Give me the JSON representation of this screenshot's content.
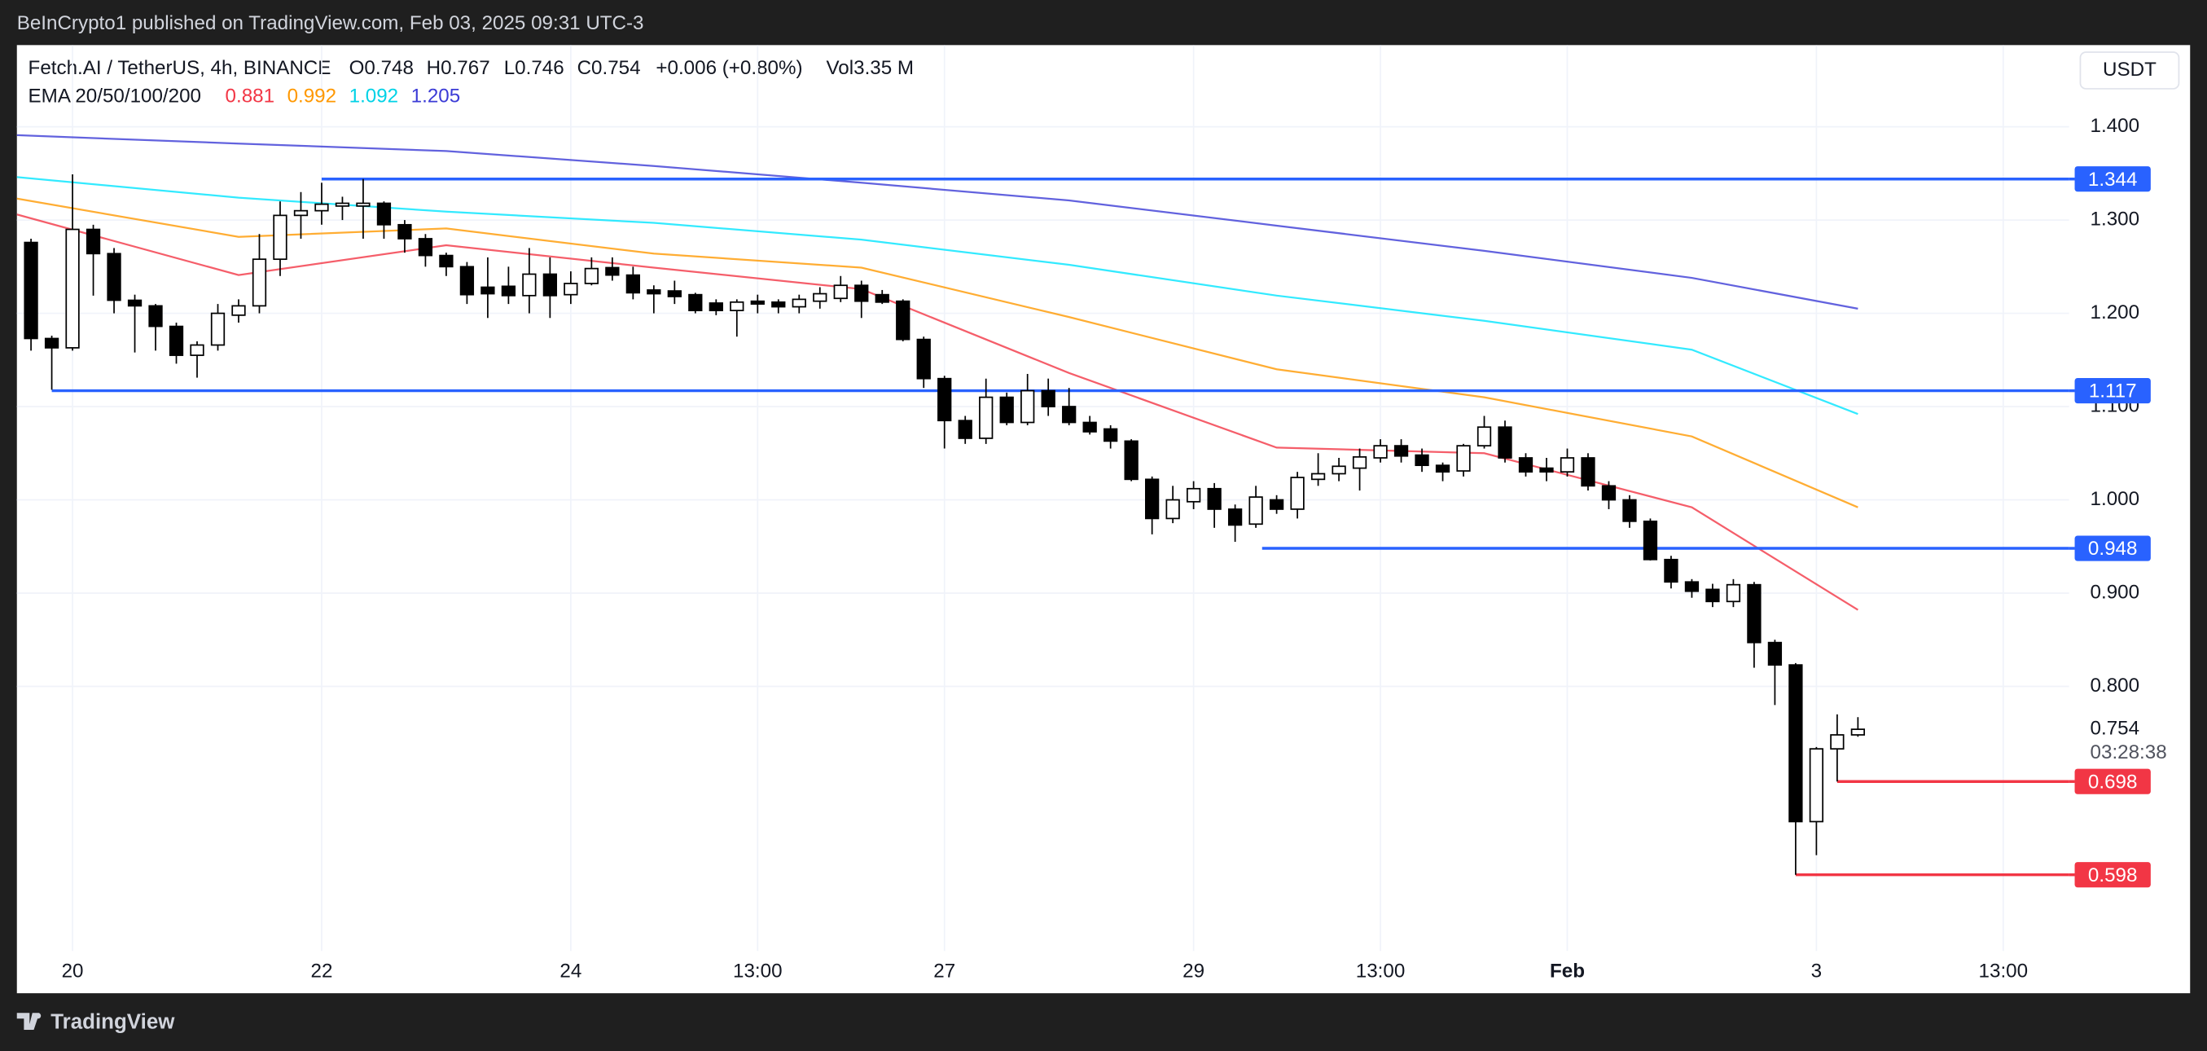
{
  "header": {
    "published": "BeInCrypto1 published on TradingView.com, Feb 03, 2025 09:31 UTC-3",
    "symbol": "Fetch.AI / TetherUS, 4h, BINANCE",
    "open": "O0.748",
    "high": "H0.767",
    "low": "L0.746",
    "close": "C0.754",
    "change": "+0.006 (+0.80%)",
    "volume": "Vol3.35 M",
    "currency": "USDT"
  },
  "footer": {
    "brand": "TradingView"
  },
  "chart_data": {
    "type": "candlestick",
    "up_color": "#ffffff",
    "down_color": "#000000",
    "wick_color": "#000000",
    "candles": {
      "open": [
        1.276,
        1.173,
        1.163,
        1.29,
        1.264,
        1.214,
        1.208,
        1.186,
        1.155,
        1.166,
        1.198,
        1.208,
        1.258,
        1.305,
        1.31,
        1.315,
        1.315,
        1.318,
        1.295,
        1.28,
        1.262,
        1.25,
        1.228,
        1.229,
        1.219,
        1.242,
        1.22,
        1.232,
        1.249,
        1.241,
        1.225,
        1.224,
        1.22,
        1.211,
        1.203,
        1.213,
        1.212,
        1.207,
        1.213,
        1.216,
        1.23,
        1.22,
        1.213,
        1.172,
        1.13,
        1.085,
        1.066,
        1.11,
        1.083,
        1.117,
        1.1,
        1.083,
        1.076,
        1.063,
        1.022,
        0.98,
        0.998,
        1.012,
        0.99,
        0.974,
        1.0,
        0.99,
        1.022,
        1.028,
        1.034,
        1.045,
        1.058,
        1.048,
        1.037,
        1.031,
        1.058,
        1.078,
        1.045,
        1.034,
        1.03,
        1.045,
        1.015,
        1.0,
        0.977,
        0.936,
        0.912,
        0.904,
        0.891,
        0.909,
        0.847,
        0.823,
        0.655,
        0.733,
        0.748
      ],
      "high": [
        1.28,
        1.176,
        1.349,
        1.295,
        1.27,
        1.22,
        1.21,
        1.19,
        1.17,
        1.21,
        1.215,
        1.285,
        1.32,
        1.33,
        1.34,
        1.325,
        1.344,
        1.32,
        1.3,
        1.285,
        1.265,
        1.255,
        1.26,
        1.25,
        1.27,
        1.26,
        1.245,
        1.26,
        1.26,
        1.25,
        1.23,
        1.235,
        1.222,
        1.215,
        1.215,
        1.22,
        1.215,
        1.22,
        1.228,
        1.24,
        1.235,
        1.225,
        1.215,
        1.175,
        1.133,
        1.09,
        1.13,
        1.115,
        1.135,
        1.13,
        1.12,
        1.09,
        1.08,
        1.065,
        1.025,
        1.015,
        1.02,
        1.018,
        0.995,
        1.015,
        1.005,
        1.03,
        1.05,
        1.045,
        1.055,
        1.065,
        1.065,
        1.055,
        1.04,
        1.06,
        1.09,
        1.085,
        1.05,
        1.045,
        1.055,
        1.05,
        1.02,
        1.005,
        0.98,
        0.94,
        0.915,
        0.91,
        0.915,
        0.912,
        0.85,
        0.825,
        0.735,
        0.77,
        0.767
      ],
      "low": [
        1.16,
        1.118,
        1.16,
        1.219,
        1.2,
        1.158,
        1.16,
        1.146,
        1.131,
        1.16,
        1.19,
        1.2,
        1.24,
        1.28,
        1.295,
        1.3,
        1.28,
        1.28,
        1.265,
        1.25,
        1.24,
        1.21,
        1.195,
        1.21,
        1.2,
        1.195,
        1.21,
        1.23,
        1.235,
        1.215,
        1.2,
        1.21,
        1.2,
        1.198,
        1.175,
        1.2,
        1.2,
        1.2,
        1.205,
        1.212,
        1.195,
        1.21,
        1.17,
        1.12,
        1.055,
        1.06,
        1.06,
        1.08,
        1.08,
        1.09,
        1.08,
        1.07,
        1.055,
        1.02,
        0.963,
        0.975,
        0.99,
        0.97,
        0.955,
        0.97,
        0.985,
        0.98,
        1.015,
        1.02,
        1.01,
        1.04,
        1.04,
        1.03,
        1.02,
        1.025,
        1.055,
        1.04,
        1.025,
        1.02,
        1.025,
        1.01,
        0.99,
        0.97,
        0.935,
        0.905,
        0.895,
        0.885,
        0.885,
        0.82,
        0.78,
        0.598,
        0.619,
        0.698,
        0.746
      ],
      "close": [
        1.173,
        1.163,
        1.29,
        1.264,
        1.214,
        1.208,
        1.186,
        1.155,
        1.166,
        1.2,
        1.208,
        1.258,
        1.305,
        1.31,
        1.317,
        1.318,
        1.318,
        1.295,
        1.28,
        1.262,
        1.25,
        1.22,
        1.221,
        1.219,
        1.242,
        1.219,
        1.232,
        1.248,
        1.241,
        1.222,
        1.221,
        1.218,
        1.203,
        1.203,
        1.212,
        1.21,
        1.207,
        1.215,
        1.221,
        1.23,
        1.213,
        1.212,
        1.172,
        1.13,
        1.085,
        1.066,
        1.11,
        1.083,
        1.117,
        1.1,
        1.083,
        1.073,
        1.063,
        1.022,
        0.98,
        1.0,
        1.012,
        0.99,
        0.973,
        1.003,
        0.99,
        1.024,
        1.028,
        1.036,
        1.046,
        1.058,
        1.047,
        1.037,
        1.03,
        1.058,
        1.078,
        1.045,
        1.03,
        1.03,
        1.045,
        1.015,
        1.0,
        0.977,
        0.936,
        0.912,
        0.902,
        0.891,
        0.909,
        0.847,
        0.823,
        0.655,
        0.733,
        0.748,
        0.754
      ]
    },
    "countdown": "03:28:38",
    "ema_label": "EMA 20/50/100/200",
    "lines": [
      {
        "color": "#f23645",
        "last": 0.881,
        "x": [
          -0.68,
          10,
          20,
          30,
          40,
          50,
          60,
          70,
          80,
          88
        ],
        "values": [
          1.306,
          1.241,
          1.273,
          1.249,
          1.226,
          1.136,
          1.056,
          1.05,
          0.992,
          0.882
        ]
      },
      {
        "color": "#ff9800",
        "last": 0.992,
        "x": [
          -0.68,
          10,
          20,
          30,
          40,
          50,
          60,
          70,
          80,
          88
        ],
        "values": [
          1.323,
          1.282,
          1.291,
          1.264,
          1.249,
          1.196,
          1.14,
          1.11,
          1.068,
          0.992
        ]
      },
      {
        "color": "#00e5ff",
        "last": 1.092,
        "x": [
          -0.68,
          10,
          20,
          30,
          40,
          50,
          60,
          70,
          80,
          88
        ],
        "values": [
          1.346,
          1.324,
          1.309,
          1.297,
          1.279,
          1.252,
          1.219,
          1.192,
          1.161,
          1.092
        ]
      },
      {
        "color": "#3b3bd6",
        "last": 1.205,
        "x": [
          -0.68,
          10,
          20,
          30,
          40,
          50,
          60,
          70,
          80,
          88
        ],
        "values": [
          1.391,
          1.382,
          1.374,
          1.358,
          1.34,
          1.321,
          1.294,
          1.267,
          1.238,
          1.205
        ]
      }
    ],
    "levels": [
      {
        "value": 1.344,
        "start": 14,
        "color": "#2962ff"
      },
      {
        "value": 1.117,
        "start": 1,
        "color": "#2962ff"
      },
      {
        "value": 0.948,
        "start": 59.3,
        "color": "#2962ff"
      },
      {
        "value": 0.698,
        "start": 87,
        "color": "#f23645"
      },
      {
        "value": 0.598,
        "start": 85,
        "color": "#f23645"
      }
    ],
    "xlim": [
      -0.68,
      98.17
    ],
    "ylim": [
      0.5163,
      1.4876
    ],
    "xticks": [
      {
        "value": 2,
        "label": "20"
      },
      {
        "value": 14,
        "label": "22"
      },
      {
        "value": 26,
        "label": "24"
      },
      {
        "value": 35,
        "label": "13:00"
      },
      {
        "value": 44,
        "label": "27"
      },
      {
        "value": 56,
        "label": "29"
      },
      {
        "value": 65,
        "label": "13:00"
      },
      {
        "value": 74,
        "label": "Feb"
      },
      {
        "value": 86,
        "label": "3"
      },
      {
        "value": 95,
        "label": "13:00"
      }
    ],
    "yticks": [
      {
        "value": 0.8,
        "label": "0.800"
      },
      {
        "value": 0.9,
        "label": "0.900"
      },
      {
        "value": 1.0,
        "label": "1.000"
      },
      {
        "value": 1.1,
        "label": "1.100"
      },
      {
        "value": 1.2,
        "label": "1.200"
      },
      {
        "value": 1.3,
        "label": "1.300"
      },
      {
        "value": 1.4,
        "label": "1.400"
      }
    ],
    "grid": true
  }
}
